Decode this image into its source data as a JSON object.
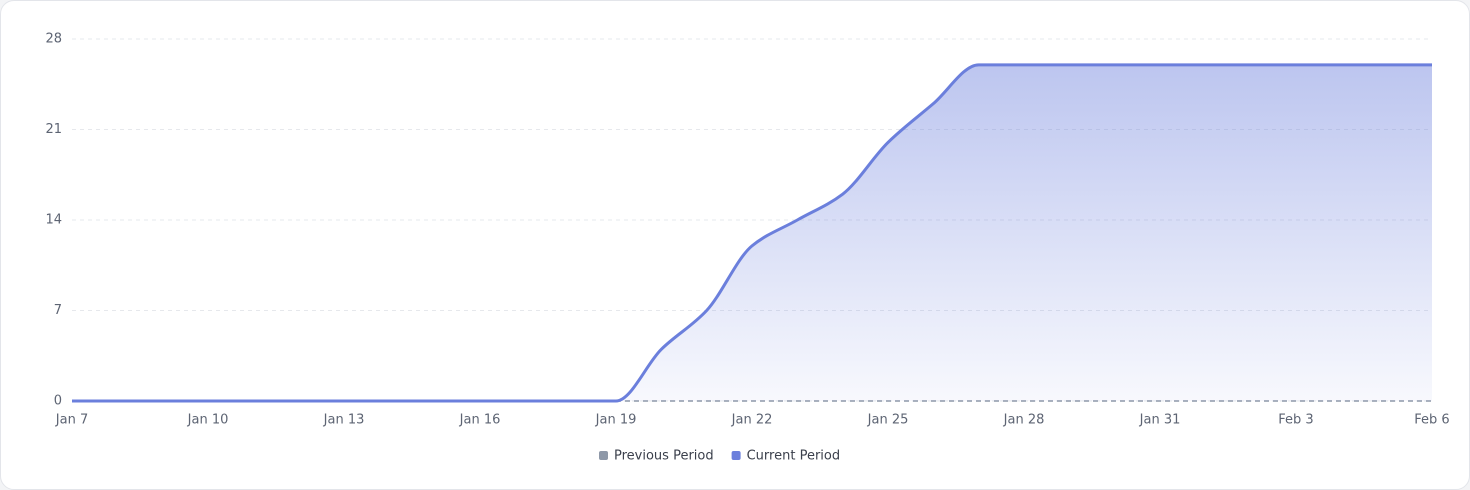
{
  "chart_data": {
    "type": "line",
    "categories": [
      "Jan 7",
      null,
      null,
      "Jan 10",
      null,
      null,
      "Jan 13",
      null,
      null,
      "Jan 16",
      null,
      null,
      "Jan 19",
      null,
      null,
      "Jan 22",
      null,
      null,
      "Jan 25",
      null,
      null,
      "Jan 28",
      null,
      null,
      "Jan 31",
      null,
      null,
      "Feb 3",
      null,
      null,
      "Feb 6"
    ],
    "series": [
      {
        "name": "Previous Period",
        "color": "#8e98a8",
        "dashed": true,
        "values": [
          null,
          null,
          null,
          null,
          null,
          null,
          null,
          null,
          null,
          null,
          null,
          null,
          0,
          0,
          0,
          0,
          0,
          0,
          0,
          0,
          0,
          0,
          0,
          0,
          0,
          0,
          0,
          0,
          0,
          0,
          0
        ]
      },
      {
        "name": "Current Period",
        "color": "#6b7fdc",
        "area": true,
        "values": [
          0,
          0,
          0,
          0,
          0,
          0,
          0,
          0,
          0,
          0,
          0,
          0,
          0,
          4,
          7,
          12,
          14,
          16,
          20,
          23,
          26,
          26,
          26,
          26,
          26,
          26,
          26,
          26,
          26,
          26,
          26
        ]
      }
    ],
    "ylim": [
      0,
      28
    ],
    "yticks": [
      0,
      7,
      14,
      21,
      28
    ],
    "grid": true,
    "legend": "bottom"
  }
}
